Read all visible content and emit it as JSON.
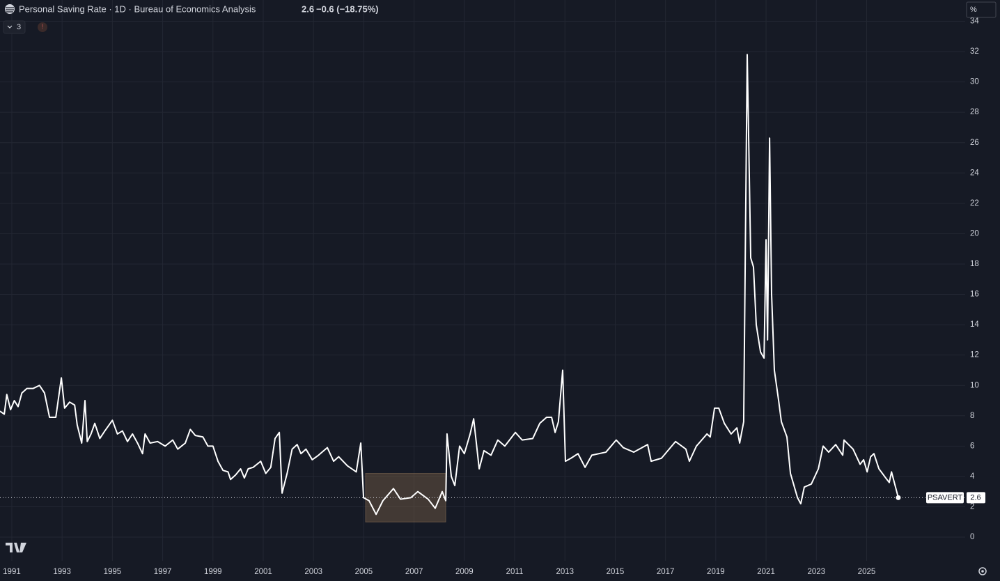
{
  "chart_data": {
    "type": "line",
    "title": "Personal Saving Rate · 1D · Bureau of Economics Analysis",
    "last_value_label": "2.6",
    "change_label": "−0.6 (−18.75%)",
    "indicator_count": "3",
    "scale_label": "%",
    "x": [
      1990.53,
      1990.7,
      1990.8,
      1990.95,
      1991.1,
      1991.25,
      1991.4,
      1991.6,
      1991.85,
      1992.1,
      1992.3,
      1992.5,
      1992.75,
      1992.97,
      1993.1,
      1993.3,
      1993.5,
      1993.6,
      1993.78,
      1993.91,
      1994.0,
      1994.15,
      1994.3,
      1994.5,
      1994.7,
      1995.0,
      1995.2,
      1995.4,
      1995.6,
      1995.8,
      1996.0,
      1996.2,
      1996.3,
      1996.5,
      1996.8,
      1997.1,
      1997.4,
      1997.6,
      1997.9,
      1998.1,
      1998.3,
      1998.6,
      1998.8,
      1999.0,
      1999.2,
      1999.4,
      1999.6,
      1999.7,
      1999.9,
      2000.1,
      2000.25,
      2000.4,
      2000.6,
      2000.9,
      2001.1,
      2001.3,
      2001.47,
      2001.64,
      2001.75,
      2001.95,
      2002.15,
      2002.35,
      2002.5,
      2002.7,
      2002.95,
      2003.2,
      2003.55,
      2003.8,
      2004.0,
      2004.35,
      2004.7,
      2004.88,
      2004.99,
      2005.21,
      2005.49,
      2005.76,
      2006.18,
      2006.46,
      2006.87,
      2007.15,
      2007.56,
      2007.84,
      2008.12,
      2008.26,
      2008.31,
      2008.48,
      2008.62,
      2008.81,
      2009.0,
      2009.23,
      2009.37,
      2009.59,
      2009.78,
      2010.06,
      2010.33,
      2010.61,
      2011.03,
      2011.3,
      2011.72,
      2012.0,
      2012.27,
      2012.47,
      2012.61,
      2012.74,
      2012.91,
      2013.02,
      2013.24,
      2013.52,
      2013.8,
      2014.07,
      2014.63,
      2015.04,
      2015.32,
      2015.74,
      2016.29,
      2016.43,
      2016.84,
      2017.4,
      2017.81,
      2017.95,
      2018.23,
      2018.65,
      2018.78,
      2018.95,
      2019.12,
      2019.34,
      2019.61,
      2019.84,
      2019.95,
      2020.11,
      2020.25,
      2020.39,
      2020.5,
      2020.61,
      2020.78,
      2020.92,
      2021.0,
      2021.06,
      2021.14,
      2021.22,
      2021.33,
      2021.5,
      2021.61,
      2021.83,
      2021.97,
      2022.25,
      2022.38,
      2022.52,
      2022.8,
      2023.08,
      2023.27,
      2023.49,
      2023.77,
      2024.05,
      2024.1,
      2024.46,
      2024.74,
      2024.88,
      2025.02,
      2025.16,
      2025.29,
      2025.49,
      2025.76,
      2025.9,
      2025.99,
      2026.26
    ],
    "series": [
      {
        "name": "PSAVERT",
        "color": "#ffffff",
        "values": [
          8.3,
          8.1,
          9.4,
          8.4,
          9.0,
          8.6,
          9.5,
          9.8,
          9.8,
          10.0,
          9.5,
          7.9,
          7.9,
          10.5,
          8.5,
          8.9,
          8.7,
          7.4,
          6.2,
          9.0,
          6.3,
          6.8,
          7.5,
          6.5,
          7.0,
          7.7,
          6.8,
          7.0,
          6.3,
          6.8,
          6.2,
          5.5,
          6.8,
          6.2,
          6.3,
          6.0,
          6.4,
          5.8,
          6.2,
          7.1,
          6.7,
          6.6,
          6.0,
          6.0,
          5.0,
          4.4,
          4.3,
          3.8,
          4.1,
          4.5,
          3.9,
          4.5,
          4.6,
          5.0,
          4.2,
          4.6,
          6.5,
          6.9,
          2.9,
          4.2,
          5.8,
          6.1,
          5.5,
          5.8,
          5.1,
          5.4,
          5.9,
          5.0,
          5.3,
          4.7,
          4.3,
          6.2,
          2.6,
          2.4,
          1.5,
          2.4,
          3.2,
          2.5,
          2.6,
          3.0,
          2.5,
          1.9,
          3.0,
          2.4,
          6.8,
          4.0,
          3.4,
          6.0,
          5.5,
          6.8,
          7.8,
          4.5,
          5.7,
          5.4,
          6.4,
          6.0,
          6.9,
          6.4,
          6.5,
          7.5,
          7.9,
          7.9,
          6.9,
          7.6,
          11.0,
          5.0,
          5.2,
          5.5,
          4.6,
          5.4,
          5.6,
          6.4,
          5.9,
          5.6,
          6.1,
          5.0,
          5.2,
          6.3,
          5.8,
          5.0,
          6.0,
          6.8,
          6.6,
          8.5,
          8.5,
          7.5,
          6.8,
          7.2,
          6.2,
          7.6,
          31.8,
          18.4,
          17.8,
          14.0,
          12.2,
          11.8,
          19.6,
          13.0,
          26.3,
          16.0,
          11.0,
          9.0,
          7.6,
          6.6,
          4.2,
          2.6,
          2.2,
          3.3,
          3.5,
          4.5,
          6.0,
          5.6,
          6.1,
          5.4,
          6.4,
          5.8,
          4.8,
          5.1,
          4.3,
          5.3,
          5.5,
          4.5,
          3.9,
          3.6,
          4.3,
          2.6
        ]
      }
    ],
    "highlight": {
      "xlim": [
        2005.07,
        2008.26
      ],
      "ylim": [
        1.0,
        4.2
      ],
      "color": "rgba(120, 96, 72, 0.45)"
    },
    "xlim": [
      1990.53,
      2028.92
    ],
    "ylim": [
      -1.56,
      35.4
    ],
    "xticks": [
      1991,
      1993,
      1995,
      1997,
      1999,
      2001,
      2003,
      2005,
      2007,
      2009,
      2011,
      2013,
      2015,
      2017,
      2019,
      2021,
      2023,
      2025
    ],
    "yticks": [
      0,
      2,
      4,
      6,
      8,
      10,
      12,
      14,
      16,
      18,
      20,
      22,
      24,
      26,
      28,
      30,
      32,
      34
    ],
    "grid": true,
    "grid_color": "#232733"
  }
}
